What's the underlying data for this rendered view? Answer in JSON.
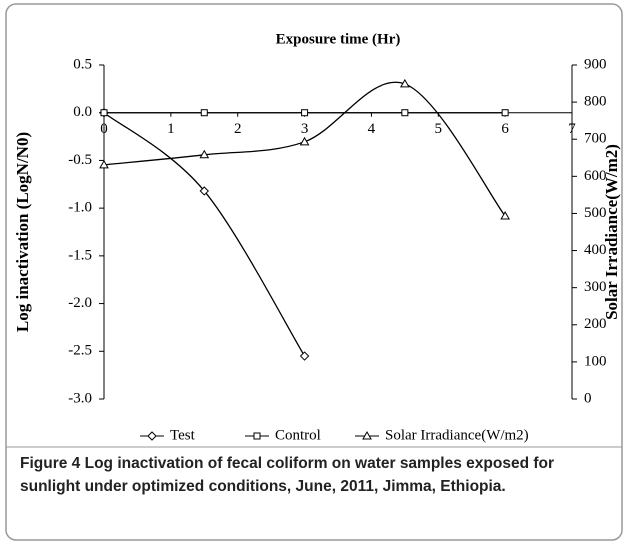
{
  "chart_data": {
    "type": "line",
    "x_label": "Exposure time (Hr)",
    "y_label": "Log inactivation (LogN/N0)",
    "y2_label": "Solar Irradiance(W/m2)",
    "xlim": [
      0,
      7
    ],
    "xticks": [
      0,
      1,
      2,
      3,
      4,
      5,
      6,
      7
    ],
    "ylim": [
      -3,
      0.5
    ],
    "yticks": [
      0.5,
      {
        "value": 0,
        "label": "0.0"
      },
      -0.5,
      {
        "value": -1,
        "label": "-1.0"
      },
      -1.5,
      {
        "value": -2,
        "label": "-2.0"
      },
      -2.5,
      {
        "value": -3,
        "label": "-3.0"
      }
    ],
    "y2lim": [
      0,
      900
    ],
    "y2ticks": [
      0,
      100,
      200,
      300,
      400,
      500,
      600,
      700,
      800,
      900
    ],
    "series": [
      {
        "name": "Test",
        "color": "#000000",
        "marker": "diamond",
        "x": [
          0,
          1.5,
          3
        ],
        "values": [
          0,
          -0.82,
          -2.55
        ]
      },
      {
        "name": "Control",
        "color": "#000000",
        "marker": "square",
        "x": [
          0,
          1.5,
          3,
          4.5,
          6
        ],
        "values": [
          0,
          0,
          0,
          0,
          0
        ]
      },
      {
        "name": "Solar Irradiance(W/m2)",
        "color": "#000000",
        "marker": "triangle",
        "axis": "y2",
        "x": [
          0,
          1.5,
          3,
          4.5,
          6
        ],
        "values": [
          631,
          658,
          693,
          849,
          493
        ]
      }
    ]
  },
  "caption": {
    "label": "Figure 4",
    "text": "Log inactivation of fecal coliform on water samples exposed for sunlight under optimized conditions, June, 2011, Jimma, Ethiopia."
  }
}
